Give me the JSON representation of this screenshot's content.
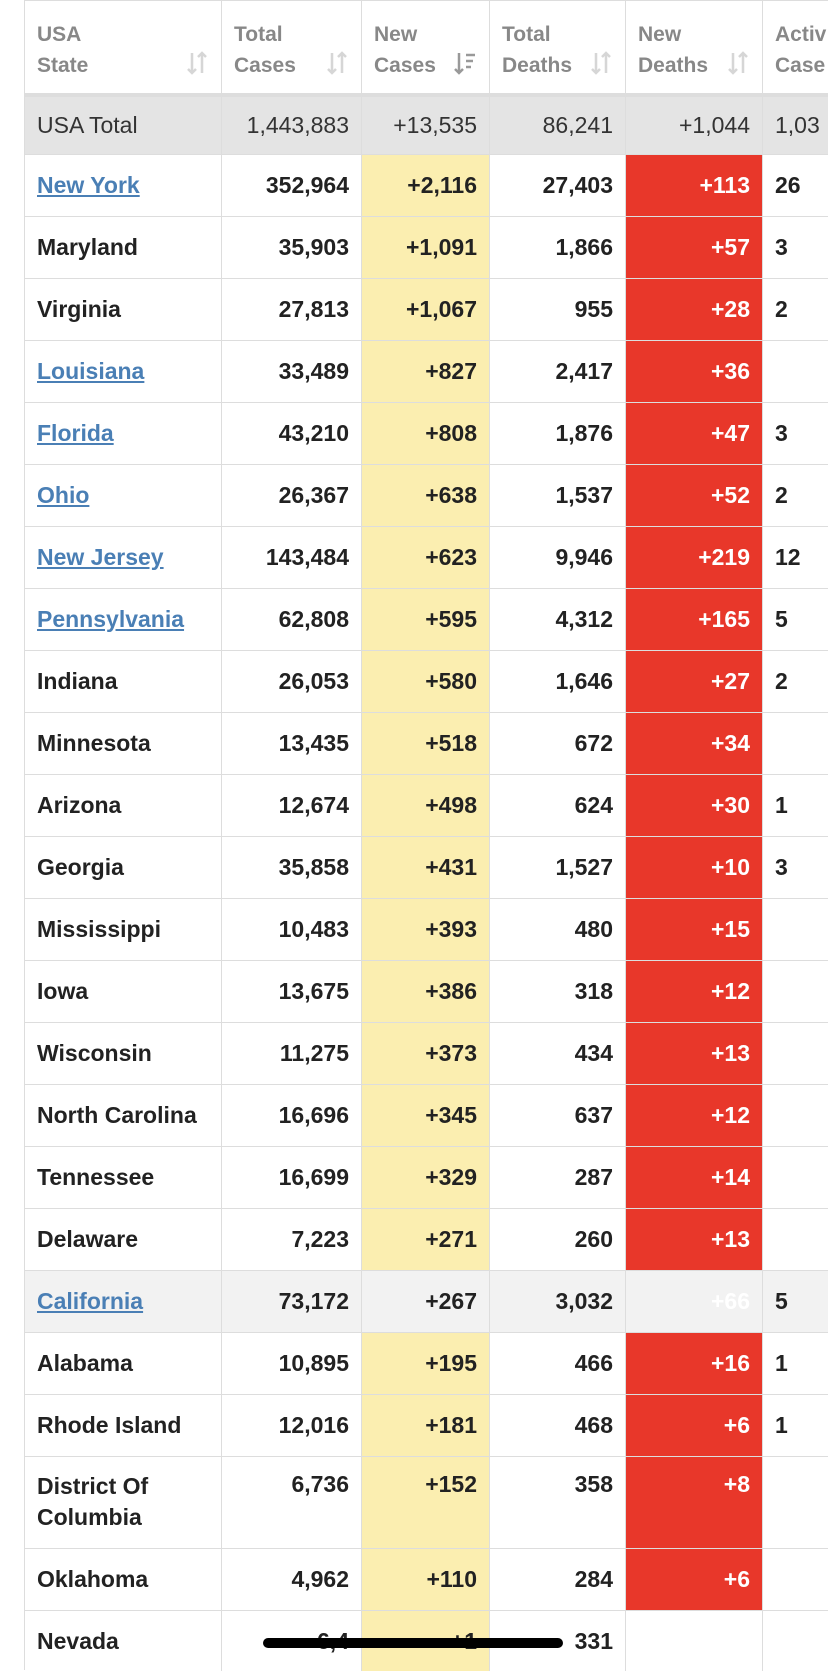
{
  "headers": {
    "state": [
      "USA",
      "State"
    ],
    "total_cases": [
      "Total",
      "Cases"
    ],
    "new_cases": [
      "New",
      "Cases"
    ],
    "total_deaths": [
      "Total",
      "Deaths"
    ],
    "new_deaths": [
      "New",
      "Deaths"
    ],
    "active_cases": [
      "Activ",
      "Case"
    ]
  },
  "totals": {
    "label": "USA Total",
    "total_cases": "1,443,883",
    "new_cases": "+13,535",
    "total_deaths": "86,241",
    "new_deaths": "+1,044",
    "active_cases": "1,03"
  },
  "rows": [
    {
      "state": "New York",
      "total_cases": "352,964",
      "new_cases": "+2,116",
      "total_deaths": "27,403",
      "new_deaths": "+113",
      "active_cases": "26",
      "link": true
    },
    {
      "state": "Maryland",
      "total_cases": "35,903",
      "new_cases": "+1,091",
      "total_deaths": "1,866",
      "new_deaths": "+57",
      "active_cases": "3",
      "link": false
    },
    {
      "state": "Virginia",
      "total_cases": "27,813",
      "new_cases": "+1,067",
      "total_deaths": "955",
      "new_deaths": "+28",
      "active_cases": "2",
      "link": false
    },
    {
      "state": "Louisiana",
      "total_cases": "33,489",
      "new_cases": "+827",
      "total_deaths": "2,417",
      "new_deaths": "+36",
      "active_cases": "",
      "link": true
    },
    {
      "state": "Florida",
      "total_cases": "43,210",
      "new_cases": "+808",
      "total_deaths": "1,876",
      "new_deaths": "+47",
      "active_cases": "3",
      "link": true
    },
    {
      "state": "Ohio",
      "total_cases": "26,367",
      "new_cases": "+638",
      "total_deaths": "1,537",
      "new_deaths": "+52",
      "active_cases": "2",
      "link": true
    },
    {
      "state": "New Jersey",
      "total_cases": "143,484",
      "new_cases": "+623",
      "total_deaths": "9,946",
      "new_deaths": "+219",
      "active_cases": "12",
      "link": true
    },
    {
      "state": "Pennsylvania",
      "total_cases": "62,808",
      "new_cases": "+595",
      "total_deaths": "4,312",
      "new_deaths": "+165",
      "active_cases": "5",
      "link": true
    },
    {
      "state": "Indiana",
      "total_cases": "26,053",
      "new_cases": "+580",
      "total_deaths": "1,646",
      "new_deaths": "+27",
      "active_cases": "2",
      "link": false
    },
    {
      "state": "Minnesota",
      "total_cases": "13,435",
      "new_cases": "+518",
      "total_deaths": "672",
      "new_deaths": "+34",
      "active_cases": "",
      "link": false
    },
    {
      "state": "Arizona",
      "total_cases": "12,674",
      "new_cases": "+498",
      "total_deaths": "624",
      "new_deaths": "+30",
      "active_cases": "1",
      "link": false
    },
    {
      "state": "Georgia",
      "total_cases": "35,858",
      "new_cases": "+431",
      "total_deaths": "1,527",
      "new_deaths": "+10",
      "active_cases": "3",
      "link": false
    },
    {
      "state": "Mississippi",
      "total_cases": "10,483",
      "new_cases": "+393",
      "total_deaths": "480",
      "new_deaths": "+15",
      "active_cases": "",
      "link": false
    },
    {
      "state": "Iowa",
      "total_cases": "13,675",
      "new_cases": "+386",
      "total_deaths": "318",
      "new_deaths": "+12",
      "active_cases": "",
      "link": false
    },
    {
      "state": "Wisconsin",
      "total_cases": "11,275",
      "new_cases": "+373",
      "total_deaths": "434",
      "new_deaths": "+13",
      "active_cases": "",
      "link": false
    },
    {
      "state": "North Carolina",
      "total_cases": "16,696",
      "new_cases": "+345",
      "total_deaths": "637",
      "new_deaths": "+12",
      "active_cases": "",
      "link": false
    },
    {
      "state": "Tennessee",
      "total_cases": "16,699",
      "new_cases": "+329",
      "total_deaths": "287",
      "new_deaths": "+14",
      "active_cases": "",
      "link": false
    },
    {
      "state": "Delaware",
      "total_cases": "7,223",
      "new_cases": "+271",
      "total_deaths": "260",
      "new_deaths": "+13",
      "active_cases": "",
      "link": false
    },
    {
      "state": "California",
      "total_cases": "73,172",
      "new_cases": "+267",
      "total_deaths": "3,032",
      "new_deaths": "+66",
      "active_cases": "5",
      "link": true,
      "highlight": true
    },
    {
      "state": "Alabama",
      "total_cases": "10,895",
      "new_cases": "+195",
      "total_deaths": "466",
      "new_deaths": "+16",
      "active_cases": "1",
      "link": false
    },
    {
      "state": "Rhode Island",
      "total_cases": "12,016",
      "new_cases": "+181",
      "total_deaths": "468",
      "new_deaths": "+6",
      "active_cases": "1",
      "link": false
    },
    {
      "state": "District Of Columbia",
      "total_cases": "6,736",
      "new_cases": "+152",
      "total_deaths": "358",
      "new_deaths": "+8",
      "active_cases": "",
      "link": false,
      "tall": true
    },
    {
      "state": "Oklahoma",
      "total_cases": "4,962",
      "new_cases": "+110",
      "total_deaths": "284",
      "new_deaths": "+6",
      "active_cases": "",
      "link": false
    },
    {
      "state": "Nevada",
      "total_cases": "6,4",
      "new_cases": "+1",
      "total_deaths": "331",
      "new_deaths": "",
      "active_cases": "",
      "link": false
    }
  ],
  "colors": {
    "link": "#4a7fb5",
    "new_cases_bg": "#fbeeb0",
    "new_deaths_bg": "#e8372a",
    "total_row_bg": "#e4e4e4"
  },
  "icons": {
    "sort": "sort-icon",
    "sort_active": "sort-desc-icon"
  }
}
